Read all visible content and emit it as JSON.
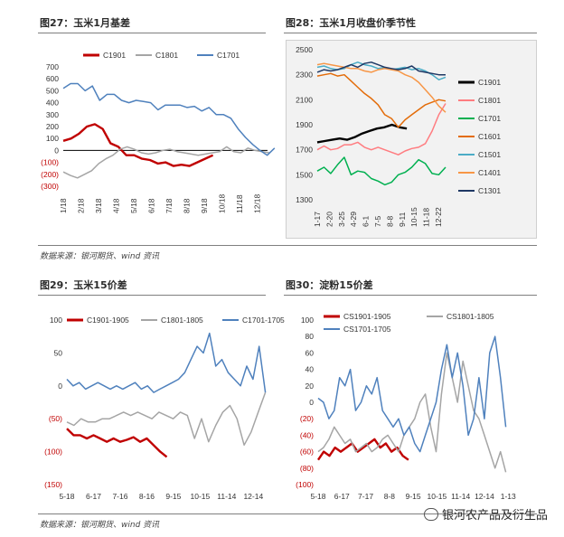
{
  "figures": {
    "f27": {
      "title": "图27：玉米1月基差"
    },
    "f28": {
      "title": "图28：玉米1月收盘价季节性"
    },
    "f29": {
      "title": "图29：玉米15价差"
    },
    "f30": {
      "title": "图30：淀粉15价差"
    }
  },
  "source_top": "数据来源：银河期货、wind 资讯",
  "source_bottom": "数据来源：银河期货、wind 资讯",
  "watermark": "银河农产品及衍生品",
  "colors": {
    "red": "#c00000",
    "gray": "#a5a5a5",
    "blue": "#4f81bd",
    "black": "#000000",
    "pink": "#ff7c80",
    "green": "#00b050",
    "orange": "#e36c09",
    "light_orange": "#f79646",
    "teal": "#4bacc6",
    "navy": "#1f3864"
  },
  "chart_data": [
    {
      "id": "chart27",
      "type": "line",
      "yticks": [
        "700",
        "600",
        "500",
        "400",
        "300",
        "200",
        "100",
        "0",
        "(100)",
        "(200)",
        "(300)"
      ],
      "ylim": [
        -300,
        700
      ],
      "xticks": [
        "1/18",
        "2/18",
        "3/18",
        "4/18",
        "5/18",
        "6/18",
        "7/18",
        "8/18",
        "9/18",
        "10/18",
        "11/18",
        "12/18"
      ],
      "legend_position": "top",
      "series": [
        {
          "name": "C1901",
          "color": "#c00000",
          "start": 0,
          "end": 8.5,
          "values": [
            80,
            100,
            140,
            200,
            220,
            180,
            60,
            30,
            -40,
            -40,
            -70,
            -80,
            -110,
            -100,
            -130,
            -120,
            -130,
            -100,
            -70,
            -40
          ]
        },
        {
          "name": "C1801",
          "color": "#a5a5a5",
          "start": 0,
          "end": 11.7,
          "values": [
            -180,
            -210,
            -230,
            -200,
            -170,
            -110,
            -70,
            -40,
            10,
            30,
            10,
            -20,
            -30,
            -20,
            0,
            10,
            -10,
            -20,
            -30,
            -40,
            -30,
            -20,
            -10,
            30,
            -10,
            -20,
            20,
            0,
            -10,
            -20
          ]
        },
        {
          "name": "C1701",
          "color": "#4f81bd",
          "start": 0,
          "end": 12,
          "values": [
            520,
            560,
            560,
            500,
            540,
            420,
            470,
            470,
            420,
            400,
            420,
            410,
            400,
            340,
            380,
            380,
            380,
            360,
            370,
            330,
            360,
            300,
            300,
            270,
            180,
            110,
            50,
            0,
            -40,
            20
          ]
        }
      ]
    },
    {
      "id": "chart28",
      "type": "line",
      "yticks": [
        "2500",
        "2300",
        "2100",
        "1900",
        "1700",
        "1500",
        "1300"
      ],
      "ylim": [
        1300,
        2500
      ],
      "xticks": [
        "1-17",
        "2-20",
        "3-25",
        "4-29",
        "6-1",
        "7-5",
        "8-8",
        "9-11",
        "10-15",
        "11-18",
        "12-22"
      ],
      "legend_position": "right",
      "series": [
        {
          "name": "C1901",
          "color": "#000000",
          "start": 0,
          "end": 7.4,
          "values": [
            1760,
            1770,
            1780,
            1790,
            1780,
            1800,
            1830,
            1850,
            1870,
            1880,
            1900,
            1880,
            1870
          ]
        },
        {
          "name": "C1801",
          "color": "#ff7c80",
          "start": 0,
          "end": 10.6,
          "values": [
            1700,
            1730,
            1700,
            1710,
            1740,
            1740,
            1760,
            1720,
            1700,
            1720,
            1700,
            1680,
            1660,
            1690,
            1710,
            1720,
            1750,
            1850,
            1980,
            2070
          ]
        },
        {
          "name": "C1701",
          "color": "#00b050",
          "start": 0,
          "end": 10.6,
          "values": [
            1530,
            1560,
            1510,
            1580,
            1640,
            1500,
            1530,
            1520,
            1470,
            1450,
            1420,
            1440,
            1500,
            1520,
            1560,
            1620,
            1590,
            1510,
            1500,
            1560
          ]
        },
        {
          "name": "C1601",
          "color": "#e36c09",
          "start": 0,
          "end": 10.6,
          "values": [
            2290,
            2300,
            2310,
            2290,
            2300,
            2250,
            2200,
            2150,
            2110,
            2060,
            1980,
            1950,
            1880,
            1940,
            1980,
            2020,
            2060,
            2080,
            2100,
            2090
          ]
        },
        {
          "name": "C1501",
          "color": "#4bacc6",
          "start": 0,
          "end": 10.6,
          "values": [
            2360,
            2370,
            2350,
            2340,
            2350,
            2380,
            2400,
            2380,
            2370,
            2350,
            2360,
            2340,
            2350,
            2360,
            2340,
            2350,
            2330,
            2300,
            2260,
            2280
          ]
        },
        {
          "name": "C1401",
          "color": "#f79646",
          "start": 0,
          "end": 10.6,
          "values": [
            2380,
            2390,
            2380,
            2370,
            2360,
            2350,
            2350,
            2330,
            2320,
            2340,
            2350,
            2340,
            2330,
            2300,
            2280,
            2240,
            2180,
            2120,
            2050,
            2000
          ]
        },
        {
          "name": "C1301",
          "color": "#1f3864",
          "start": 0,
          "end": 10.6,
          "values": [
            2320,
            2340,
            2330,
            2340,
            2360,
            2380,
            2360,
            2390,
            2400,
            2380,
            2360,
            2350,
            2340,
            2350,
            2370,
            2330,
            2320,
            2310,
            2300,
            2300
          ]
        }
      ]
    },
    {
      "id": "chart29",
      "type": "line",
      "yticks": [
        "100",
        "50",
        "0",
        "(50)",
        "(100)",
        "(150)"
      ],
      "ylim": [
        -150,
        100
      ],
      "xticks": [
        "5-18",
        "6-17",
        "7-16",
        "8-16",
        "9-15",
        "10-15",
        "11-14",
        "12-14"
      ],
      "legend_position": "top",
      "series": [
        {
          "name": "C1901-1905",
          "color": "#c00000",
          "start": 0,
          "end": 3.75,
          "values": [
            -65,
            -75,
            -75,
            -80,
            -75,
            -80,
            -85,
            -80,
            -85,
            -82,
            -78,
            -85,
            -80,
            -90,
            -100,
            -108
          ]
        },
        {
          "name": "C1801-1805",
          "color": "#a5a5a5",
          "start": 0,
          "end": 7.45,
          "values": [
            -55,
            -60,
            -50,
            -55,
            -55,
            -50,
            -50,
            -45,
            -40,
            -45,
            -40,
            -45,
            -50,
            -40,
            -45,
            -50,
            -40,
            -45,
            -80,
            -50,
            -85,
            -60,
            -40,
            -30,
            -50,
            -90,
            -70,
            -40,
            -10
          ]
        },
        {
          "name": "C1701-1705",
          "color": "#4f81bd",
          "start": 0,
          "end": 7.45,
          "values": [
            10,
            0,
            5,
            -5,
            0,
            5,
            0,
            -5,
            0,
            -5,
            0,
            5,
            -5,
            0,
            -10,
            -5,
            0,
            5,
            10,
            20,
            40,
            60,
            50,
            80,
            30,
            40,
            20,
            10,
            0,
            30,
            10,
            60,
            -10
          ]
        }
      ]
    },
    {
      "id": "chart30",
      "type": "line",
      "yticks": [
        "100",
        "80",
        "60",
        "40",
        "20",
        "0",
        "(20)",
        "(40)",
        "(60)",
        "(80)",
        "(100)"
      ],
      "ylim": [
        -100,
        100
      ],
      "xticks": [
        "5-18",
        "6-17",
        "7-17",
        "8-8",
        "9-15",
        "10-15",
        "11-14",
        "12-14",
        "1-13"
      ],
      "legend_position": "top",
      "series": [
        {
          "name": "CS1901-1905",
          "color": "#c00000",
          "start": 0,
          "end": 3.8,
          "values": [
            -70,
            -60,
            -65,
            -55,
            -60,
            -55,
            -50,
            -60,
            -55,
            -50,
            -45,
            -55,
            -50,
            -60,
            -55,
            -65,
            -70
          ]
        },
        {
          "name": "CS1801-1805",
          "color": "#a5a5a5",
          "start": 0,
          "end": 7.9,
          "values": [
            -60,
            -55,
            -45,
            -30,
            -40,
            -50,
            -45,
            -60,
            -55,
            -50,
            -60,
            -55,
            -45,
            -40,
            -50,
            -60,
            -40,
            -30,
            -20,
            0,
            10,
            -30,
            -60,
            10,
            60,
            30,
            0,
            50,
            20,
            -10,
            -20,
            -40,
            -60,
            -80,
            -60,
            -85
          ]
        },
        {
          "name": "CS1701-1705",
          "color": "#4f81bd",
          "start": 0,
          "end": 7.9,
          "values": [
            5,
            0,
            -20,
            -10,
            30,
            20,
            40,
            -10,
            0,
            20,
            10,
            30,
            -10,
            -20,
            -30,
            -20,
            -40,
            -30,
            -50,
            -60,
            -40,
            -20,
            0,
            40,
            70,
            30,
            60,
            20,
            -40,
            -20,
            30,
            -20,
            60,
            80,
            30,
            -30
          ]
        }
      ]
    }
  ]
}
